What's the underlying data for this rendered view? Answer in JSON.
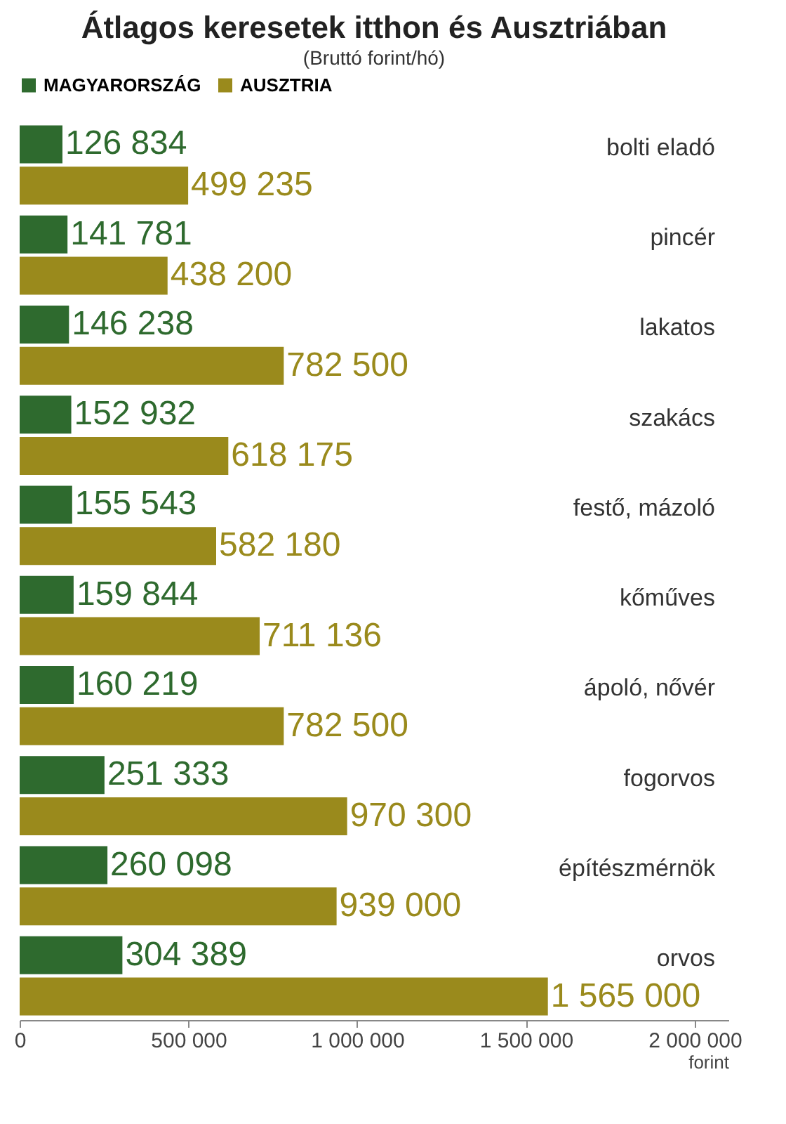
{
  "chart_data": {
    "type": "bar",
    "orientation": "horizontal",
    "title": "Átlagos keresetek itthon és Ausztriában",
    "subtitle": "(Bruttó forint/hó)",
    "xlabel": "forint",
    "categories": [
      "bolti eladó",
      "pincér",
      "lakatos",
      "szakács",
      "festő, mázoló",
      "kőműves",
      "ápoló, nővér",
      "fogorvos",
      "építészmérnök",
      "orvos"
    ],
    "series": [
      {
        "name": "MAGYARORSZÁG",
        "color": "#2e6a2e",
        "values": [
          126834,
          141781,
          146238,
          152932,
          155543,
          159844,
          160219,
          251333,
          260098,
          304389
        ],
        "value_labels": [
          "126 834",
          "141 781",
          "146 238",
          "152 932",
          "155 543",
          "159 844",
          "160 219",
          "251 333",
          "260 098",
          "304 389"
        ]
      },
      {
        "name": "AUSZTRIA",
        "color": "#9a8a1c",
        "values": [
          499235,
          438200,
          782500,
          618175,
          582180,
          711136,
          782500,
          970300,
          939000,
          1565000
        ],
        "value_labels": [
          "499 235",
          "438 200",
          "782 500",
          "618 175",
          "582 180",
          "711 136",
          "782 500",
          "970 300",
          "939 000",
          "1 565 000"
        ]
      }
    ],
    "xlim": [
      0,
      2100000
    ],
    "xticks": [
      0,
      {
        "value": 500000,
        "label": "500 000"
      },
      {
        "value": 1000000,
        "label": "1 000 000"
      },
      {
        "value": 1500000,
        "label": "1 500 000"
      },
      {
        "value": 2000000,
        "label": "2 000 000"
      }
    ],
    "grid": false,
    "legend": "top"
  }
}
